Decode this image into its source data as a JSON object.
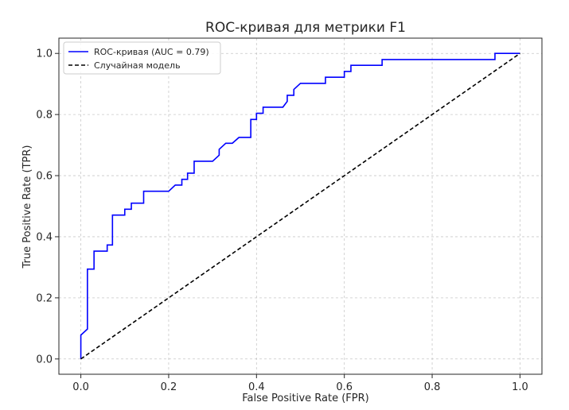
{
  "chart_data": {
    "type": "line",
    "title": "ROC-кривая для метрики F1",
    "xlabel": "False Positive Rate (FPR)",
    "ylabel": "True Positive Rate (TPR)",
    "xlim": [
      -0.05,
      1.05
    ],
    "ylim": [
      -0.05,
      1.05
    ],
    "xticks": [
      0.0,
      0.2,
      0.4,
      0.6,
      0.8,
      1.0
    ],
    "xtick_labels": [
      "0.0",
      "0.2",
      "0.4",
      "0.6",
      "0.8",
      "1.0"
    ],
    "yticks": [
      0.0,
      0.2,
      0.4,
      0.6,
      0.8,
      1.0
    ],
    "ytick_labels": [
      "0.0",
      "0.2",
      "0.4",
      "0.6",
      "0.8",
      "1.0"
    ],
    "grid": true,
    "legend_position": "top-left",
    "series": [
      {
        "name": "ROC-кривая (AUC = 0.79)",
        "color": "#0000ff",
        "style": "solid",
        "x": [
          0.0,
          0.0,
          0.015,
          0.015,
          0.03,
          0.03,
          0.06,
          0.06,
          0.072,
          0.072,
          0.1,
          0.1,
          0.115,
          0.115,
          0.143,
          0.143,
          0.2,
          0.215,
          0.23,
          0.23,
          0.243,
          0.243,
          0.258,
          0.258,
          0.3,
          0.315,
          0.315,
          0.33,
          0.345,
          0.36,
          0.387,
          0.387,
          0.4,
          0.4,
          0.415,
          0.415,
          0.46,
          0.47,
          0.47,
          0.485,
          0.485,
          0.5,
          0.5,
          0.557,
          0.557,
          0.6,
          0.6,
          0.615,
          0.615,
          0.686,
          0.686,
          0.943,
          0.943,
          1.0
        ],
        "y": [
          0.0,
          0.078,
          0.098,
          0.294,
          0.294,
          0.353,
          0.353,
          0.373,
          0.373,
          0.471,
          0.471,
          0.49,
          0.49,
          0.51,
          0.51,
          0.549,
          0.549,
          0.569,
          0.569,
          0.588,
          0.588,
          0.608,
          0.608,
          0.647,
          0.647,
          0.667,
          0.686,
          0.706,
          0.706,
          0.725,
          0.725,
          0.784,
          0.784,
          0.804,
          0.804,
          0.824,
          0.824,
          0.843,
          0.863,
          0.863,
          0.882,
          0.902,
          0.902,
          0.902,
          0.922,
          0.922,
          0.941,
          0.941,
          0.961,
          0.961,
          0.98,
          0.98,
          1.0,
          1.0
        ]
      },
      {
        "name": "Случайная модель",
        "color": "#000000",
        "style": "dashed",
        "x": [
          0.0,
          1.0
        ],
        "y": [
          0.0,
          1.0
        ]
      }
    ]
  }
}
